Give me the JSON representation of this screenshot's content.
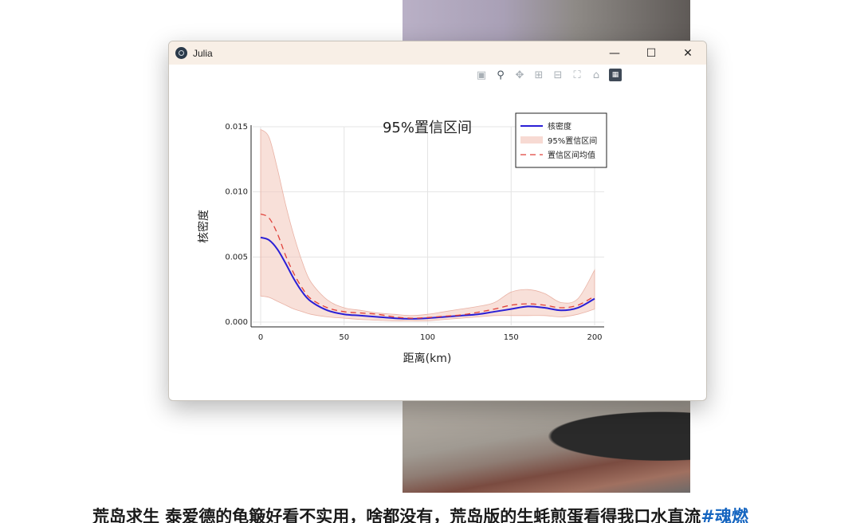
{
  "window": {
    "title": "Julia",
    "controls": {
      "minimize": "—",
      "maximize": "☐",
      "close": "✕"
    },
    "toolbar_icons": [
      "camera-icon",
      "zoom-icon",
      "pan-icon",
      "zoom-in-icon",
      "zoom-out-icon",
      "autoscale-icon",
      "reset-axes-icon",
      "plotly-logo-icon"
    ]
  },
  "caption": {
    "text": "荒岛求生 泰爱德的龟簸好看不实用，啥都没有，荒岛版的生蚝煎蛋看得我口水直流",
    "tag": "#魂燃"
  },
  "chart_data": {
    "type": "line",
    "title": "95%置信区间",
    "xlabel": "距离(km)",
    "ylabel": "核密度",
    "xlim": [
      0,
      200
    ],
    "ylim": [
      0,
      0.015
    ],
    "x_ticks": [
      0,
      50,
      100,
      150,
      200
    ],
    "x_tick_labels": [
      "0",
      "50",
      "100",
      "150",
      "200"
    ],
    "y_ticks": [
      0,
      0.005,
      0.01,
      0.015
    ],
    "y_tick_labels": [
      "0.000",
      "0.005",
      "0.010",
      "0.015"
    ],
    "grid": true,
    "legend_position": "top-right",
    "x": [
      0,
      5,
      10,
      15,
      20,
      25,
      30,
      40,
      50,
      60,
      70,
      80,
      90,
      100,
      110,
      120,
      130,
      140,
      150,
      160,
      170,
      180,
      190,
      200
    ],
    "series": [
      {
        "name": "核密度",
        "color": "#2a1fd6",
        "style": "solid",
        "values": [
          0.0065,
          0.0063,
          0.0056,
          0.0045,
          0.0033,
          0.0023,
          0.0016,
          0.0009,
          0.0006,
          0.0005,
          0.0004,
          0.0003,
          0.00025,
          0.0003,
          0.0004,
          0.0005,
          0.0006,
          0.0008,
          0.001,
          0.0012,
          0.0011,
          0.0009,
          0.0011,
          0.0018
        ]
      },
      {
        "name": "95%置信区间",
        "color": "#f3cbc0",
        "style": "band",
        "lower": [
          0.002,
          0.0019,
          0.0016,
          0.0013,
          0.001,
          0.0008,
          0.0006,
          0.0004,
          0.0003,
          0.0002,
          0.00015,
          0.0001,
          0.0001,
          0.0001,
          0.0002,
          0.0003,
          0.0004,
          0.0005,
          0.0005,
          0.0005,
          0.0005,
          0.0004,
          0.0006,
          0.001
        ],
        "upper": [
          0.0148,
          0.0142,
          0.0118,
          0.009,
          0.0066,
          0.0046,
          0.0031,
          0.0017,
          0.0011,
          0.0009,
          0.0007,
          0.0006,
          0.0005,
          0.0006,
          0.0008,
          0.001,
          0.0012,
          0.0015,
          0.0023,
          0.0025,
          0.0022,
          0.0015,
          0.0018,
          0.004
        ]
      },
      {
        "name": "置信区间均值",
        "color": "#e0413a",
        "style": "dashed",
        "values": [
          0.0083,
          0.008,
          0.0068,
          0.0051,
          0.0037,
          0.0026,
          0.0018,
          0.0011,
          0.0008,
          0.0007,
          0.0006,
          0.0004,
          0.0003,
          0.00035,
          0.00045,
          0.00055,
          0.00075,
          0.001,
          0.0013,
          0.0014,
          0.0013,
          0.0011,
          0.0013,
          0.002
        ]
      }
    ]
  }
}
